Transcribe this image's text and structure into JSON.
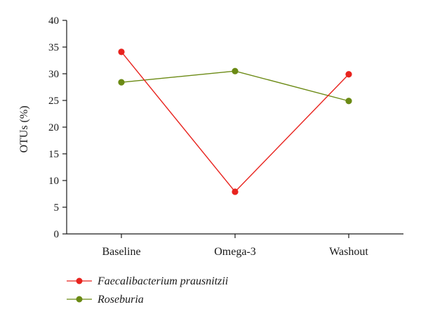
{
  "chart_data": {
    "type": "line",
    "ylabel": "OTUs (%)",
    "xlabel": "",
    "ylim": [
      0,
      40
    ],
    "yticks": [
      0,
      5,
      10,
      15,
      20,
      25,
      30,
      35,
      40
    ],
    "categories": [
      "Baseline",
      "Omega-3",
      "Washout"
    ],
    "grid": false,
    "legend_position": "bottom-left",
    "series": [
      {
        "name": "Faecalibacterium prausnitzii",
        "color": "#e8231e",
        "values": [
          34.1,
          7.9,
          29.9
        ]
      },
      {
        "name": "Roseburia",
        "color": "#6b8a14",
        "values": [
          28.4,
          30.5,
          24.9
        ]
      }
    ]
  }
}
